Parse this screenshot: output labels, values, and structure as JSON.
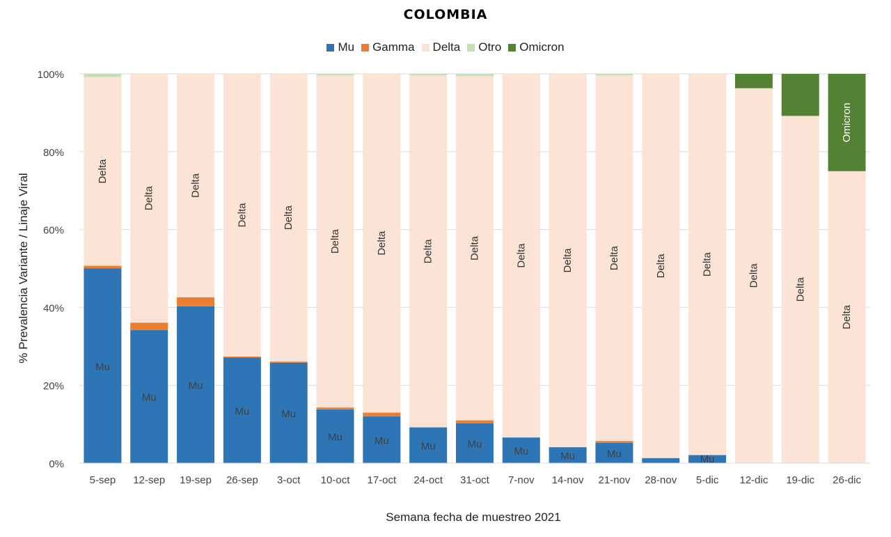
{
  "chart_data": {
    "type": "bar",
    "stacked": true,
    "percent": true,
    "title": "COLOMBIA",
    "xlabel": "Semana fecha de muestreo 2021",
    "ylabel": "% Prevalencia Variante / Linaje Viral",
    "ylim": [
      0,
      100
    ],
    "yticks": [
      "0%",
      "20%",
      "40%",
      "60%",
      "80%",
      "100%"
    ],
    "grid": true,
    "legend_position": "top",
    "categories": [
      "5-sep",
      "12-sep",
      "19-sep",
      "26-sep",
      "3-oct",
      "10-oct",
      "17-oct",
      "24-oct",
      "31-oct",
      "7-nov",
      "14-nov",
      "21-nov",
      "28-nov",
      "5-dic",
      "12-dic",
      "19-dic",
      "26-dic"
    ],
    "series": [
      {
        "name": "Mu",
        "color": "#2E75B6",
        "values": [
          50,
          34.2,
          40.3,
          27.1,
          25.8,
          13.8,
          12,
          9.2,
          10.2,
          6.6,
          4.1,
          5.2,
          1.3,
          2.1,
          0,
          0,
          0
        ]
      },
      {
        "name": "Gamma",
        "color": "#ED7D31",
        "values": [
          0.7,
          1.9,
          2.3,
          0.3,
          0.3,
          0.5,
          1,
          0,
          0.8,
          0,
          0,
          0.5,
          0,
          0,
          0,
          0,
          0
        ]
      },
      {
        "name": "Delta",
        "color": "#FBE3D6",
        "values": [
          48.5,
          63.9,
          57.4,
          72.6,
          73.9,
          85.3,
          87,
          90.4,
          88.4,
          93.4,
          95.9,
          93.9,
          98.7,
          97.9,
          96.3,
          89.2,
          75
        ]
      },
      {
        "name": "Otro",
        "color": "#C5E0B4",
        "values": [
          0.8,
          0,
          0,
          0,
          0,
          0.4,
          0,
          0.4,
          0.6,
          0,
          0,
          0.4,
          0,
          0,
          0,
          0,
          0
        ]
      },
      {
        "name": "Omicron",
        "color": "#548235",
        "values": [
          0,
          0,
          0,
          0,
          0,
          0,
          0,
          0,
          0,
          0,
          0,
          0,
          0,
          0,
          3.7,
          10.8,
          25
        ]
      }
    ],
    "bar_labels": [
      {
        "series": "Mu",
        "text": "Mu",
        "categories": [
          "5-sep",
          "12-sep",
          "19-sep",
          "26-sep",
          "3-oct",
          "10-oct",
          "17-oct",
          "24-oct",
          "31-oct",
          "7-nov",
          "14-nov",
          "21-nov",
          "5-dic"
        ]
      },
      {
        "series": "Delta",
        "text": "Delta",
        "categories": [
          "5-sep",
          "12-sep",
          "19-sep",
          "26-sep",
          "3-oct",
          "10-oct",
          "17-oct",
          "24-oct",
          "31-oct",
          "7-nov",
          "14-nov",
          "21-nov",
          "28-nov",
          "5-dic",
          "12-dic",
          "19-dic",
          "26-dic"
        ]
      },
      {
        "series": "Omicron",
        "text": "Omicron",
        "categories": [
          "26-dic"
        ]
      }
    ]
  }
}
